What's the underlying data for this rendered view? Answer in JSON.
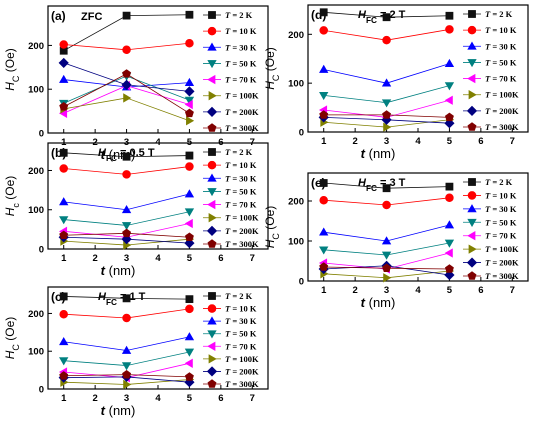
{
  "legend": {
    "prefix": "T",
    "labels": [
      "= 2 K",
      "= 10 K",
      "= 30 K",
      "= 50 K",
      "= 70 K",
      "= 100K",
      "= 200K",
      "= 300K"
    ]
  },
  "series_style": [
    {
      "color": "#111111",
      "marker": "square"
    },
    {
      "color": "#ff0000",
      "marker": "circle"
    },
    {
      "color": "#0000ff",
      "marker": "triangle-up"
    },
    {
      "color": "#008080",
      "marker": "triangle-down"
    },
    {
      "color": "#ff00ff",
      "marker": "triangle-left"
    },
    {
      "color": "#808000",
      "marker": "triangle-right"
    },
    {
      "color": "#000080",
      "marker": "diamond"
    },
    {
      "color": "#800000",
      "marker": "pentagon"
    }
  ],
  "chart_data": [
    {
      "type": "line",
      "panel_tag": "(a)",
      "condition": "ZFC",
      "x": [
        1,
        3,
        5
      ],
      "xlim": [
        0.5,
        7.5
      ],
      "ylim": [
        0,
        290
      ],
      "xticks": [
        1,
        2,
        3,
        4,
        5,
        6,
        7
      ],
      "yticks": [
        0,
        100,
        200
      ],
      "xlabel": "t (nm)",
      "ylabel": "H_C (Oe)",
      "grid": false,
      "legend_position": "right",
      "series": [
        {
          "name": "T = 2 K",
          "values": [
            188,
            268,
            270
          ]
        },
        {
          "name": "T = 10 K",
          "values": [
            202,
            190,
            205
          ]
        },
        {
          "name": "T = 30 K",
          "values": [
            122,
            105,
            115
          ]
        },
        {
          "name": "T = 50 K",
          "values": [
            68,
            130,
            75
          ]
        },
        {
          "name": "T = 70 K",
          "values": [
            45,
            108,
            65
          ]
        },
        {
          "name": "T = 100K",
          "values": [
            55,
            80,
            28
          ]
        },
        {
          "name": "T = 200K",
          "values": [
            160,
            110,
            95
          ]
        },
        {
          "name": "T = 300K",
          "values": [
            60,
            135,
            45
          ]
        }
      ]
    },
    {
      "type": "line",
      "panel_tag": "(b)",
      "condition": "H_FC = 0.5 T",
      "x": [
        1,
        3,
        5
      ],
      "xlim": [
        0.5,
        7.5
      ],
      "ylim": [
        0,
        270
      ],
      "xticks": [
        1,
        2,
        3,
        4,
        5,
        6,
        7
      ],
      "yticks": [
        0,
        100,
        200
      ],
      "xlabel": "t (nm)",
      "ylabel": "H_c (Oe)",
      "grid": false,
      "legend_position": "right",
      "series": [
        {
          "name": "T = 2 K",
          "values": [
            245,
            235,
            238
          ]
        },
        {
          "name": "T = 10 K",
          "values": [
            205,
            190,
            210
          ]
        },
        {
          "name": "T = 30 K",
          "values": [
            120,
            100,
            140
          ]
        },
        {
          "name": "T = 50 K",
          "values": [
            75,
            60,
            95
          ]
        },
        {
          "name": "T = 70 K",
          "values": [
            45,
            30,
            65
          ]
        },
        {
          "name": "T = 100K",
          "values": [
            20,
            10,
            25
          ]
        },
        {
          "name": "T = 200K",
          "values": [
            30,
            25,
            15
          ]
        },
        {
          "name": "T = 300K",
          "values": [
            35,
            40,
            30
          ]
        }
      ]
    },
    {
      "type": "line",
      "panel_tag": "(c)",
      "condition": "H_FC = 1 T",
      "x": [
        1,
        3,
        5
      ],
      "xlim": [
        0.5,
        7.5
      ],
      "ylim": [
        0,
        270
      ],
      "xticks": [
        1,
        2,
        3,
        4,
        5,
        6,
        7
      ],
      "yticks": [
        0,
        100,
        200
      ],
      "xlabel": "t (nm)",
      "ylabel": "H_C (Oe)",
      "grid": false,
      "legend_position": "right",
      "series": [
        {
          "name": "T = 2 K",
          "values": [
            245,
            240,
            238
          ]
        },
        {
          "name": "T = 10 K",
          "values": [
            198,
            188,
            212
          ]
        },
        {
          "name": "T = 30 K",
          "values": [
            125,
            102,
            138
          ]
        },
        {
          "name": "T = 50 K",
          "values": [
            75,
            62,
            98
          ]
        },
        {
          "name": "T = 70 K",
          "values": [
            45,
            30,
            68
          ]
        },
        {
          "name": "T = 100K",
          "values": [
            18,
            12,
            25
          ]
        },
        {
          "name": "T = 200K",
          "values": [
            30,
            32,
            18
          ]
        },
        {
          "name": "T = 300K",
          "values": [
            35,
            38,
            32
          ]
        }
      ]
    },
    {
      "type": "line",
      "panel_tag": "(d)",
      "condition": "H_FC = 2 T",
      "x": [
        1,
        3,
        5
      ],
      "xlim": [
        0.5,
        7.5
      ],
      "ylim": [
        0,
        260
      ],
      "xticks": [
        1,
        2,
        3,
        4,
        5,
        6,
        7
      ],
      "yticks": [
        0,
        100,
        200
      ],
      "xlabel": "t (nm)",
      "ylabel": "H_C (Oe)",
      "grid": false,
      "legend_position": "right",
      "series": [
        {
          "name": "T = 2 K",
          "values": [
            245,
            235,
            238
          ]
        },
        {
          "name": "T = 10 K",
          "values": [
            208,
            188,
            210
          ]
        },
        {
          "name": "T = 30 K",
          "values": [
            128,
            100,
            140
          ]
        },
        {
          "name": "T = 50 K",
          "values": [
            75,
            60,
            95
          ]
        },
        {
          "name": "T = 70 K",
          "values": [
            45,
            30,
            65
          ]
        },
        {
          "name": "T = 100K",
          "values": [
            20,
            10,
            25
          ]
        },
        {
          "name": "T = 200K",
          "values": [
            30,
            25,
            18
          ]
        },
        {
          "name": "T = 300K",
          "values": [
            35,
            35,
            30
          ]
        }
      ]
    },
    {
      "type": "line",
      "panel_tag": "(e)",
      "condition": "H_FC = 3 T",
      "x": [
        1,
        3,
        5
      ],
      "xlim": [
        0.5,
        7.5
      ],
      "ylim": [
        0,
        270
      ],
      "xticks": [
        1,
        2,
        3,
        4,
        5,
        6,
        7
      ],
      "yticks": [
        0,
        100,
        200
      ],
      "xlabel": "t (nm)",
      "ylabel": "H_C (Oe)",
      "grid": false,
      "legend_position": "right",
      "series": [
        {
          "name": "T = 2 K",
          "values": [
            245,
            232,
            236
          ]
        },
        {
          "name": "T = 10 K",
          "values": [
            202,
            190,
            208
          ]
        },
        {
          "name": "T = 30 K",
          "values": [
            122,
            100,
            140
          ]
        },
        {
          "name": "T = 50 K",
          "values": [
            78,
            65,
            95
          ]
        },
        {
          "name": "T = 70 K",
          "values": [
            45,
            30,
            70
          ]
        },
        {
          "name": "T = 100K",
          "values": [
            18,
            8,
            25
          ]
        },
        {
          "name": "T = 200K",
          "values": [
            30,
            38,
            15
          ]
        },
        {
          "name": "T = 300K",
          "values": [
            35,
            32,
            30
          ]
        }
      ]
    }
  ]
}
